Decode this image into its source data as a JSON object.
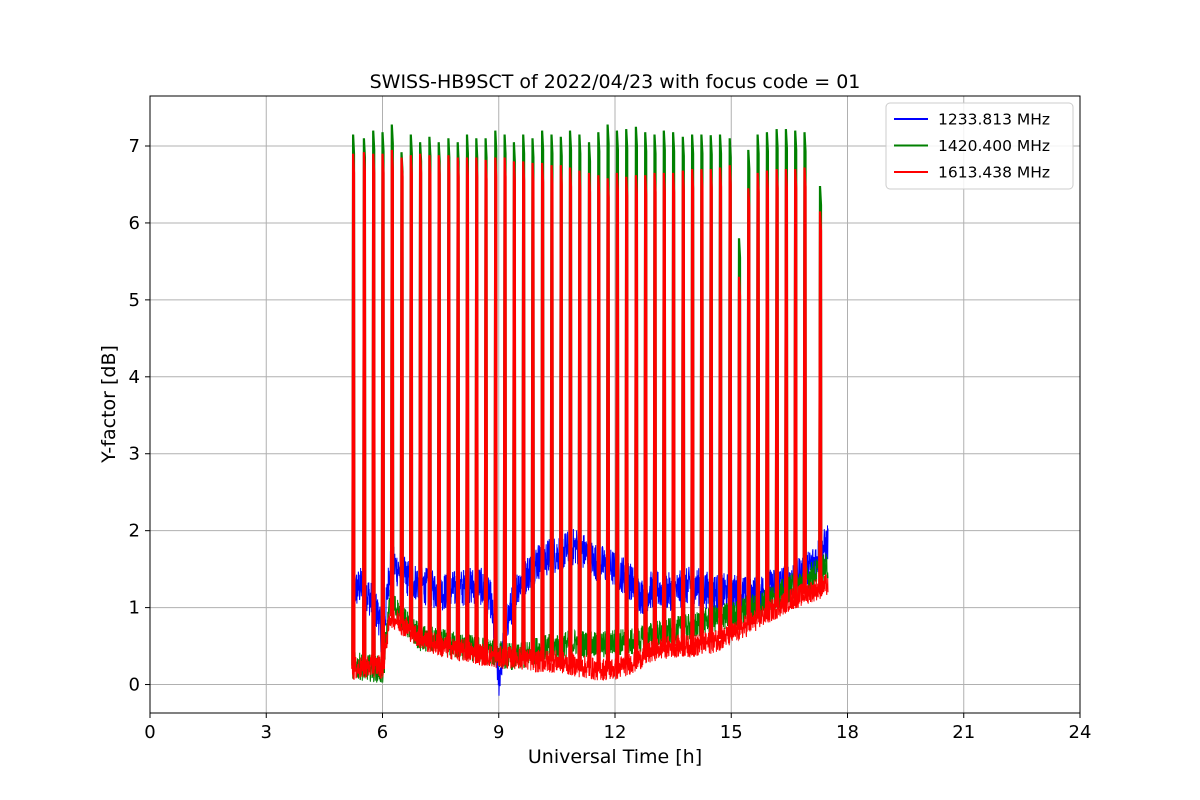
{
  "chart_data": {
    "type": "line",
    "title": "SWISS-HB9SCT of 2022/04/23 with focus code = 01",
    "xlabel": "Universal Time [h]",
    "ylabel": "Y-factor [dB]",
    "xlim": [
      0,
      24
    ],
    "ylim": [
      -0.37,
      7.65
    ],
    "xticks": [
      0,
      3,
      6,
      9,
      12,
      15,
      18,
      21,
      24
    ],
    "yticks": [
      0,
      1,
      2,
      3,
      4,
      5,
      6,
      7
    ],
    "grid": true,
    "legend_position": "top-right",
    "series": [
      {
        "name": "1233.813 MHz",
        "color": "#0000ff",
        "baseline": [
          [
            5.2,
            1.2
          ],
          [
            5.5,
            1.3
          ],
          [
            5.9,
            0.9
          ],
          [
            6.0,
            0.5
          ],
          [
            6.2,
            1.6
          ],
          [
            6.6,
            1.4
          ],
          [
            7.0,
            1.3
          ],
          [
            7.5,
            1.2
          ],
          [
            8.0,
            1.25
          ],
          [
            8.5,
            1.3
          ],
          [
            8.8,
            1.1
          ],
          [
            9.0,
            0.05
          ],
          [
            9.2,
            0.8
          ],
          [
            9.5,
            1.3
          ],
          [
            10.0,
            1.6
          ],
          [
            10.5,
            1.7
          ],
          [
            11.0,
            1.8
          ],
          [
            11.5,
            1.6
          ],
          [
            12.0,
            1.5
          ],
          [
            12.3,
            1.4
          ],
          [
            12.7,
            1.15
          ],
          [
            13.0,
            1.25
          ],
          [
            13.5,
            1.2
          ],
          [
            14.0,
            1.3
          ],
          [
            14.5,
            1.2
          ],
          [
            15.0,
            1.2
          ],
          [
            15.5,
            1.15
          ],
          [
            16.0,
            1.25
          ],
          [
            16.5,
            1.35
          ],
          [
            17.0,
            1.5
          ],
          [
            17.5,
            1.85
          ]
        ],
        "noise": 0.25
      },
      {
        "name": "1420.400 MHz",
        "color": "#008000",
        "baseline": [
          [
            5.2,
            0.25
          ],
          [
            5.9,
            0.2
          ],
          [
            6.0,
            0.15
          ],
          [
            6.2,
            1.1
          ],
          [
            6.6,
            0.8
          ],
          [
            7.0,
            0.6
          ],
          [
            7.5,
            0.55
          ],
          [
            8.0,
            0.5
          ],
          [
            8.5,
            0.45
          ],
          [
            9.0,
            0.4
          ],
          [
            9.5,
            0.35
          ],
          [
            10.0,
            0.45
          ],
          [
            10.5,
            0.5
          ],
          [
            11.0,
            0.55
          ],
          [
            11.5,
            0.5
          ],
          [
            12.0,
            0.55
          ],
          [
            12.5,
            0.55
          ],
          [
            13.0,
            0.65
          ],
          [
            13.5,
            0.7
          ],
          [
            14.0,
            0.75
          ],
          [
            14.5,
            0.85
          ],
          [
            15.0,
            0.9
          ],
          [
            15.5,
            1.0
          ],
          [
            16.0,
            1.1
          ],
          [
            16.5,
            1.25
          ],
          [
            17.0,
            1.4
          ],
          [
            17.5,
            1.55
          ]
        ],
        "noise": 0.18
      },
      {
        "name": "1613.438 MHz",
        "color": "#ff0000",
        "baseline": [
          [
            5.2,
            0.2
          ],
          [
            5.9,
            0.25
          ],
          [
            6.0,
            0.2
          ],
          [
            6.2,
            0.9
          ],
          [
            6.6,
            0.75
          ],
          [
            7.0,
            0.6
          ],
          [
            7.5,
            0.5
          ],
          [
            8.0,
            0.45
          ],
          [
            8.5,
            0.4
          ],
          [
            9.0,
            0.35
          ],
          [
            9.5,
            0.35
          ],
          [
            10.0,
            0.3
          ],
          [
            10.5,
            0.3
          ],
          [
            11.0,
            0.25
          ],
          [
            11.5,
            0.2
          ],
          [
            12.0,
            0.2
          ],
          [
            12.5,
            0.3
          ],
          [
            13.0,
            0.45
          ],
          [
            13.5,
            0.5
          ],
          [
            14.0,
            0.5
          ],
          [
            14.5,
            0.55
          ],
          [
            15.0,
            0.65
          ],
          [
            15.5,
            0.8
          ],
          [
            16.0,
            0.95
          ],
          [
            16.5,
            1.1
          ],
          [
            17.0,
            1.2
          ],
          [
            17.5,
            1.3
          ]
        ],
        "noise": 0.15
      }
    ],
    "calibration_spikes": {
      "x": [
        5.24,
        5.52,
        5.76,
        6.0,
        6.24,
        6.49,
        6.73,
        6.97,
        7.21,
        7.45,
        7.7,
        7.94,
        8.18,
        8.42,
        8.66,
        8.91,
        9.15,
        9.39,
        9.63,
        9.87,
        10.12,
        10.36,
        10.6,
        10.84,
        11.08,
        11.33,
        11.57,
        11.81,
        12.05,
        12.29,
        12.54,
        12.78,
        13.02,
        13.26,
        13.5,
        13.75,
        13.99,
        14.23,
        14.47,
        14.71,
        14.96,
        15.2,
        15.44,
        15.68,
        15.92,
        16.17,
        16.41,
        16.65,
        16.89,
        17.29
      ],
      "green_peak": [
        7.15,
        7.1,
        7.2,
        7.18,
        7.28,
        6.92,
        7.15,
        7.05,
        7.12,
        7.05,
        7.1,
        7.05,
        7.15,
        7.1,
        7.1,
        7.2,
        7.15,
        7.05,
        7.15,
        7.1,
        7.2,
        7.15,
        7.12,
        7.2,
        7.15,
        7.05,
        7.18,
        7.28,
        7.2,
        7.22,
        7.25,
        7.18,
        7.15,
        7.2,
        7.18,
        7.12,
        7.15,
        7.15,
        7.14,
        7.15,
        7.1,
        5.8,
        6.95,
        7.15,
        7.18,
        7.22,
        7.22,
        7.2,
        7.18,
        6.48
      ],
      "red_peak": [
        6.9,
        6.92,
        6.9,
        6.9,
        6.95,
        6.85,
        6.88,
        6.9,
        6.88,
        6.88,
        6.88,
        6.85,
        6.85,
        6.85,
        6.82,
        6.85,
        6.85,
        6.8,
        6.8,
        6.78,
        6.78,
        6.75,
        6.75,
        6.72,
        6.68,
        6.65,
        6.62,
        6.58,
        6.65,
        6.6,
        6.62,
        6.62,
        6.65,
        6.65,
        6.65,
        6.68,
        6.7,
        6.7,
        6.7,
        6.72,
        6.75,
        5.3,
        6.45,
        6.65,
        6.68,
        6.7,
        6.7,
        6.7,
        6.72,
        6.15
      ]
    }
  }
}
